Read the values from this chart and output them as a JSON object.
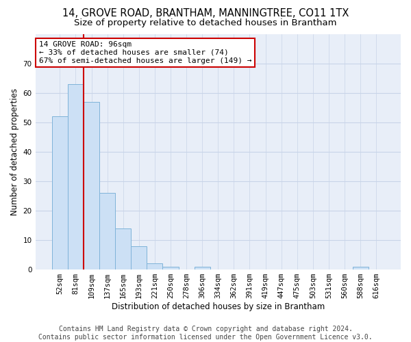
{
  "title1": "14, GROVE ROAD, BRANTHAM, MANNINGTREE, CO11 1TX",
  "title2": "Size of property relative to detached houses in Brantham",
  "xlabel": "Distribution of detached houses by size in Brantham",
  "ylabel": "Number of detached properties",
  "categories": [
    "52sqm",
    "81sqm",
    "109sqm",
    "137sqm",
    "165sqm",
    "193sqm",
    "221sqm",
    "250sqm",
    "278sqm",
    "306sqm",
    "334sqm",
    "362sqm",
    "391sqm",
    "419sqm",
    "447sqm",
    "475sqm",
    "503sqm",
    "531sqm",
    "560sqm",
    "588sqm",
    "616sqm"
  ],
  "values": [
    52,
    63,
    57,
    26,
    14,
    8,
    2,
    1,
    0,
    1,
    0,
    0,
    0,
    0,
    0,
    0,
    0,
    0,
    0,
    1,
    0
  ],
  "bar_color": "#cce0f5",
  "bar_edge_color": "#7fb3d9",
  "vline_x": 1.5,
  "vline_color": "#cc0000",
  "annotation_line1": "14 GROVE ROAD: 96sqm",
  "annotation_line2": "← 33% of detached houses are smaller (74)",
  "annotation_line3": "67% of semi-detached houses are larger (149) →",
  "annotation_box_color": "#ffffff",
  "annotation_box_edge": "#cc0000",
  "ylim_max": 80,
  "yticks": [
    0,
    10,
    20,
    30,
    40,
    50,
    60,
    70
  ],
  "grid_color": "#c8d4e8",
  "bg_color": "#e8eef8",
  "footer_line1": "Contains HM Land Registry data © Crown copyright and database right 2024.",
  "footer_line2": "Contains public sector information licensed under the Open Government Licence v3.0.",
  "title1_fontsize": 10.5,
  "title2_fontsize": 9.5,
  "axis_label_fontsize": 8.5,
  "tick_fontsize": 7.5,
  "annotation_fontsize": 8,
  "footer_fontsize": 7
}
